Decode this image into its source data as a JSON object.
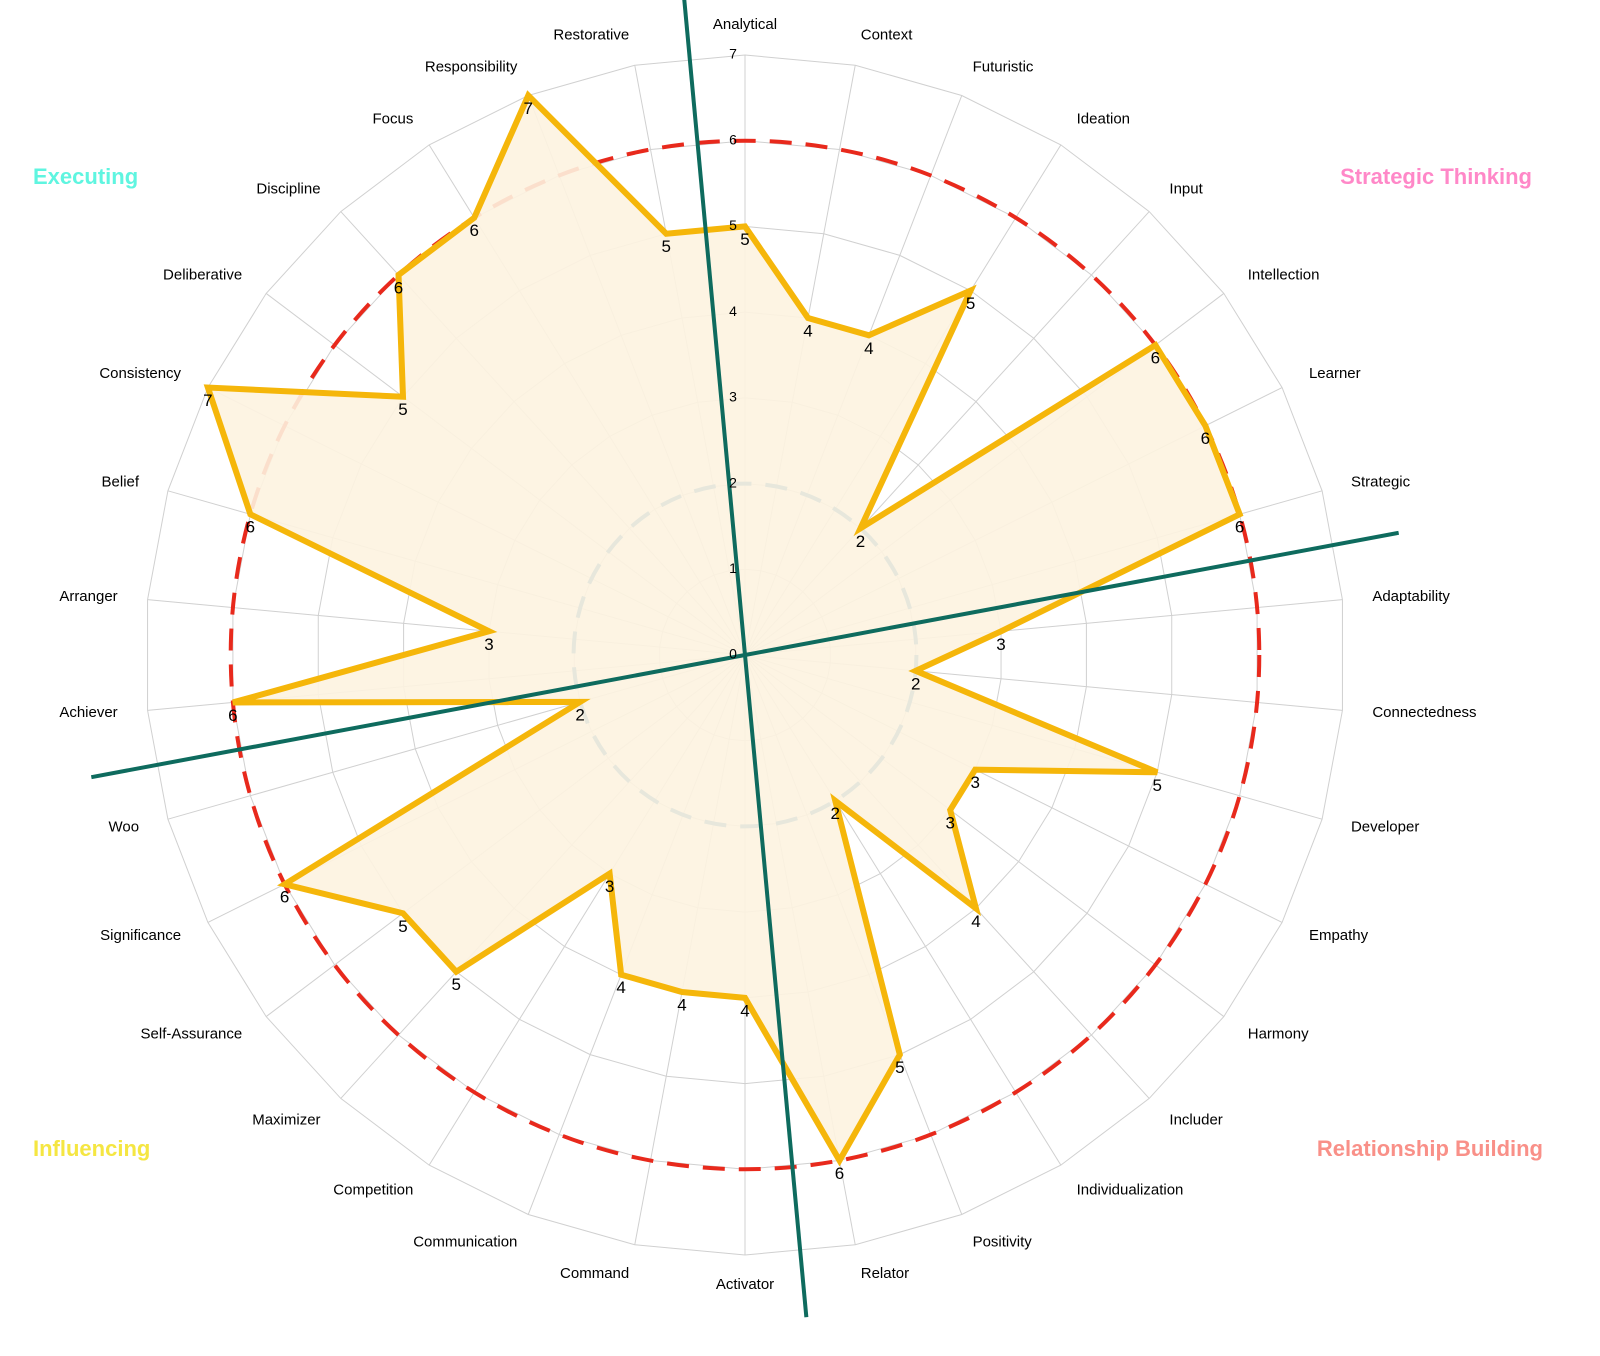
{
  "chart_data": {
    "type": "radar",
    "categories": [
      "Analytical",
      "Context",
      "Futuristic",
      "Ideation",
      "Input",
      "Intellection",
      "Learner",
      "Strategic",
      "Adaptability",
      "Connectedness",
      "Developer",
      "Empathy",
      "Harmony",
      "Includer",
      "Individualization",
      "Positivity",
      "Relator",
      "Activator",
      "Command",
      "Communication",
      "Competition",
      "Maximizer",
      "Self-Assurance",
      "Significance",
      "Woo",
      "Achiever",
      "Arranger",
      "Belief",
      "Consistency",
      "Deliberative",
      "Discipline",
      "Focus",
      "Responsibility",
      "Restorative"
    ],
    "values": [
      5,
      4,
      4,
      5,
      2,
      6,
      6,
      6,
      3,
      2,
      5,
      3,
      3,
      4,
      2,
      5,
      6,
      4,
      4,
      4,
      3,
      5,
      5,
      6,
      2,
      6,
      3,
      6,
      7,
      5,
      6,
      6,
      7,
      5
    ],
    "color": "#f5b60a",
    "fill": "#fdf3e0",
    "ylim": [
      0,
      7
    ],
    "yticks": [
      0,
      1,
      2,
      3,
      4,
      5,
      6,
      7
    ],
    "grid": true,
    "reference_lines": [
      {
        "value": 6,
        "color": "#e8291c"
      },
      {
        "value": 2,
        "color": "#1f77b4"
      }
    ],
    "groups": [
      {
        "name": "Strategic Thinking",
        "color": "#ff88c8"
      },
      {
        "name": "Relationship Building",
        "color": "#f99088"
      },
      {
        "name": "Influencing",
        "color": "#f5e642"
      },
      {
        "name": "Executing",
        "color": "#5ff5e0"
      }
    ]
  }
}
